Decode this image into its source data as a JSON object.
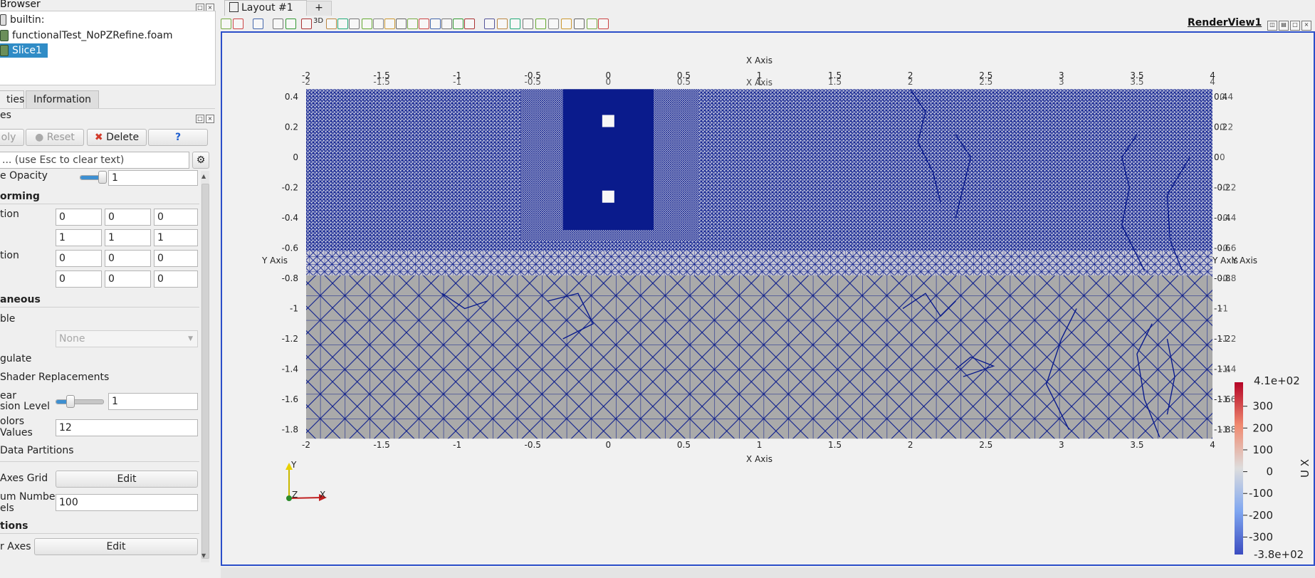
{
  "pipeline_browser": {
    "title": "Browser",
    "items": [
      {
        "label": "builtin:"
      },
      {
        "label": "functionalTest_NoPZRefine.foam"
      },
      {
        "label": "Slice1"
      }
    ]
  },
  "tabs": {
    "properties": "ties",
    "information": "Information"
  },
  "properties_header": "es",
  "buttons": {
    "apply": "oly",
    "reset": "Reset",
    "delete": "Delete",
    "help": "?"
  },
  "search": {
    "placeholder": "... (use Esc to clear text)"
  },
  "props": {
    "opacity_label": "e Opacity",
    "opacity_value": "1",
    "opacity_fraction": 0.9,
    "transforming_header": "orming",
    "translation_label": "tion",
    "translation": [
      "0",
      "0",
      "0"
    ],
    "scale": [
      "1",
      "1",
      "1"
    ],
    "orientation_label": "tion",
    "orientation": [
      "0",
      "0",
      "0"
    ],
    "origin": [
      "0",
      "0",
      "0"
    ],
    "misc_header": "aneous",
    "pickable_label": "ble",
    "none_select": "None",
    "triangulate_label": "gulate",
    "shader_label": "Shader Replacements",
    "nonlinear_label_1": "ear",
    "nonlinear_label_2": "sion Level",
    "nonlinear_value": "1",
    "nonlinear_fraction": 0.3,
    "colors_label_1": "olors",
    "colors_label_2": " Values",
    "colors_value": "12",
    "data_partitions_label": "Data Partitions",
    "axes_grid_label": "Axes Grid",
    "axes_grid_button": "Edit",
    "max_number_label_1": "um Number",
    "max_number_label_2": "els",
    "max_number_value": "100",
    "annotations_header": "tions",
    "axes_label": "r Axes",
    "axes_button": "Edit"
  },
  "layout": {
    "tab_label": "Layout #1",
    "plus": "+",
    "renderview": "RenderView1",
    "threed": "3D"
  },
  "plot": {
    "x_axis_title": "X Axis",
    "y_axis_title": "Y Axis",
    "x_ticks": [
      "-2",
      "-1.5",
      "-1",
      "-0.5",
      "0",
      "0.5",
      "1",
      "1.5",
      "2",
      "2.5",
      "3",
      "3.5",
      "4"
    ],
    "y_ticks": [
      "0.4",
      "0.2",
      "0",
      "-0.2",
      "-0.4",
      "-0.6",
      "-0.8",
      "-1",
      "-1.2",
      "-1.4",
      "-1.6",
      "-1.8"
    ],
    "colors": {
      "mesh": "#0a1b8c",
      "domain_fill": "#aaaaaa",
      "view_border": "#2b4ec9"
    }
  },
  "colorbar": {
    "title": "U X",
    "max_label": "4.1e+02",
    "min_label": "-3.8e+02",
    "ticks": [
      "300",
      "200",
      "100",
      "0",
      "-100",
      "-200",
      "-300"
    ]
  },
  "orientation_axes": {
    "y": "Y",
    "z": "Z",
    "x": "X"
  }
}
